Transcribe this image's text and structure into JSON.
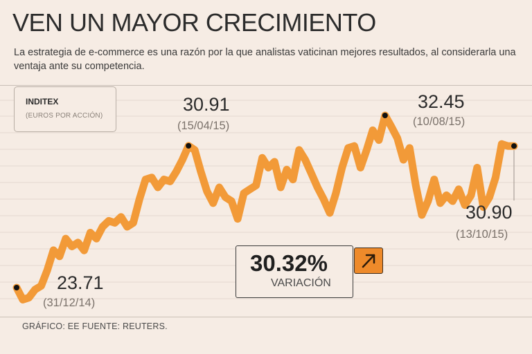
{
  "title": "VEN UN MAYOR CRECIMIENTO",
  "subtitle": "La estrategia de e-commerce es una razón por la que analistas vaticinan mejores resultados, al considerarla una ventaja ante su competencia.",
  "legend": {
    "title": "INDITEX",
    "subtitle": "(EUROS POR ACCIÓN)"
  },
  "variation": {
    "value": "30.32%",
    "label": "VARIACIÓN",
    "icon": "arrow-up-right-icon"
  },
  "source": "GRÁFICO: EE FUENTE: REUTERS.",
  "colors": {
    "line": "#f29a38",
    "background": "#f6ece4",
    "grid": "#e4d9d0",
    "accent": "#ee8a2a",
    "marker": "#111111"
  },
  "chart_data": {
    "type": "line",
    "title": "INDITEX",
    "ylabel": "Euros por acción",
    "xlabel": "",
    "ylim": [
      22.4,
      33.2
    ],
    "xrange": [
      "31/12/14",
      "13/10/15"
    ],
    "grid": true,
    "series": [
      {
        "name": "Inditex",
        "values": [
          23.71,
          23.1,
          23.2,
          23.61,
          23.8,
          24.6,
          25.61,
          25.3,
          26.2,
          25.8,
          26.0,
          25.6,
          26.5,
          26.2,
          26.8,
          27.1,
          27.0,
          27.3,
          26.8,
          27.0,
          28.2,
          29.2,
          29.3,
          28.8,
          29.2,
          29.1,
          29.6,
          30.2,
          30.91,
          30.7,
          29.6,
          28.6,
          28.0,
          28.8,
          28.3,
          28.1,
          27.2,
          28.5,
          28.7,
          28.9,
          30.3,
          29.8,
          30.1,
          28.8,
          29.7,
          29.2,
          30.7,
          30.2,
          29.5,
          28.8,
          28.2,
          27.5,
          28.5,
          29.8,
          30.8,
          30.9,
          29.8,
          30.7,
          31.7,
          31.2,
          32.45,
          31.9,
          31.3,
          30.2,
          30.8,
          28.9,
          27.4,
          28.1,
          29.2,
          28.0,
          28.4,
          28.1,
          28.7,
          27.9,
          28.4,
          29.8,
          27.8,
          28.3,
          29.3,
          31.0,
          30.9,
          30.9
        ],
        "annotations": [
          {
            "index": 0,
            "value": "23.71",
            "date": "(31/12/14)"
          },
          {
            "index": 28,
            "value": "30.91",
            "date": "(15/04/15)"
          },
          {
            "index": 60,
            "value": "32.45",
            "date": "(10/08/15)"
          },
          {
            "index": 81,
            "value": "30.90",
            "date": "(13/10/15)"
          }
        ]
      }
    ]
  }
}
